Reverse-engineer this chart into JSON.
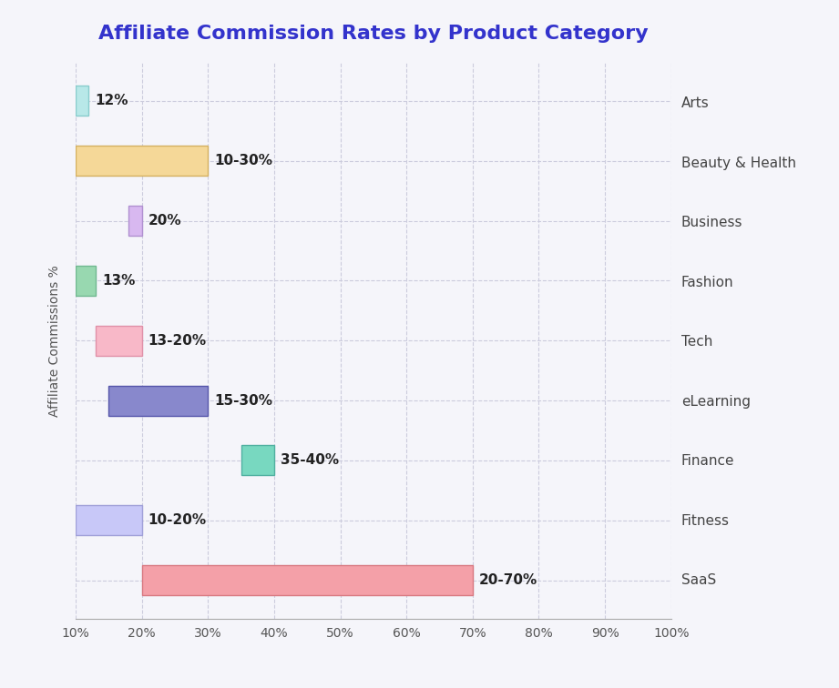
{
  "title": "Affiliate Commission Rates by Product Category",
  "title_color": "#3333cc",
  "ylabel": "Affiliate Commissions %",
  "categories": [
    "Arts",
    "Beauty & Health",
    "Business",
    "Fashion",
    "Tech",
    "eLearning",
    "Finance",
    "Fitness",
    "SaaS"
  ],
  "bar_starts": [
    10,
    10,
    18,
    10,
    13,
    15,
    35,
    10,
    20
  ],
  "bar_ends": [
    12,
    30,
    20,
    13,
    20,
    30,
    40,
    20,
    70
  ],
  "bar_colors": [
    "#b8e8e8",
    "#f5d898",
    "#d8b8f0",
    "#98d8b0",
    "#f8b8c8",
    "#8888cc",
    "#78d8c0",
    "#c8c8f8",
    "#f4a0a8"
  ],
  "bar_edge_colors": [
    "#88cccc",
    "#d4b060",
    "#b090d0",
    "#70b890",
    "#e090a8",
    "#5555aa",
    "#50b0a0",
    "#a0a0d8",
    "#d87880"
  ],
  "labels": [
    "12%",
    "10-30%",
    "20%",
    "13%",
    "13-20%",
    "15-30%",
    "35-40%",
    "10-20%",
    "20-70%"
  ],
  "xlim": [
    10,
    100
  ],
  "xticks": [
    10,
    20,
    30,
    40,
    50,
    60,
    70,
    80,
    90,
    100
  ],
  "xtick_labels": [
    "10%",
    "20%",
    "30%",
    "40%",
    "50%",
    "60%",
    "70%",
    "80%",
    "90%",
    "100%"
  ],
  "background_color": "#f5f5fa",
  "grid_color": "#ccccdd",
  "label_fontsize": 11,
  "category_fontsize": 11,
  "title_fontsize": 16,
  "ylabel_fontsize": 10,
  "bar_height": 0.5
}
